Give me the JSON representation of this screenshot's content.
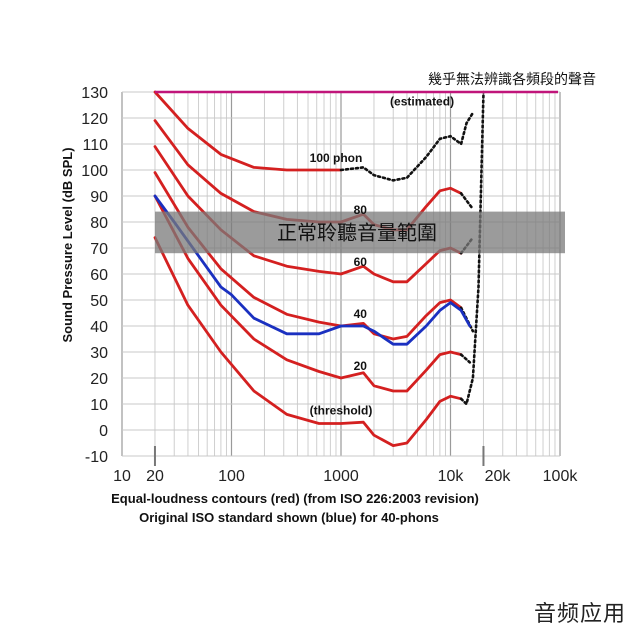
{
  "chart_data": {
    "type": "line",
    "title": "",
    "xlabel": "Equal-loudness contours (red) (from ISO 226:2003 revision)",
    "xlabel2": "Original ISO standard shown (blue) for 40-phons",
    "ylabel": "Sound Pressure Level (dB SPL)",
    "xscale": "log",
    "xlim": [
      10,
      100000
    ],
    "ylim": [
      -10,
      130
    ],
    "grid": true,
    "x_ticks": [
      {
        "value": 10,
        "label": "10"
      },
      {
        "value": 20,
        "label": "20"
      },
      {
        "value": 100,
        "label": "100"
      },
      {
        "value": 1000,
        "label": "1000"
      },
      {
        "value": 10000,
        "label": "10k"
      },
      {
        "value": 20000,
        "label": "20k"
      },
      {
        "value": 100000,
        "label": "100k"
      }
    ],
    "y_ticks": [
      130,
      120,
      110,
      100,
      90,
      80,
      70,
      60,
      50,
      40,
      30,
      20,
      10,
      0,
      -10
    ],
    "series": [
      {
        "label": "(threshold)",
        "color": "#d42020",
        "style": "solid",
        "points": [
          [
            20,
            74
          ],
          [
            40,
            48
          ],
          [
            80,
            30
          ],
          [
            160,
            15
          ],
          [
            320,
            6
          ],
          [
            630,
            2.5
          ],
          [
            1000,
            2.5
          ],
          [
            1600,
            3
          ],
          [
            2000,
            -2
          ],
          [
            3000,
            -6
          ],
          [
            4000,
            -5
          ],
          [
            6000,
            4
          ],
          [
            8000,
            11
          ],
          [
            10000,
            13
          ],
          [
            12500,
            12
          ]
        ],
        "dotted": [
          [
            12500,
            12
          ],
          [
            14000,
            10
          ],
          [
            16000,
            20
          ],
          [
            18000,
            55
          ],
          [
            20000,
            130
          ]
        ]
      },
      {
        "label": "20",
        "color": "#d42020",
        "style": "solid",
        "points": [
          [
            20,
            90
          ],
          [
            40,
            66
          ],
          [
            80,
            48
          ],
          [
            160,
            35
          ],
          [
            320,
            27
          ],
          [
            630,
            22.5
          ],
          [
            1000,
            20
          ],
          [
            1600,
            22
          ],
          [
            2000,
            17
          ],
          [
            3000,
            15
          ],
          [
            4000,
            15
          ],
          [
            6000,
            23
          ],
          [
            8000,
            29
          ],
          [
            10000,
            30
          ],
          [
            12500,
            29
          ]
        ],
        "dotted": [
          [
            12500,
            29
          ],
          [
            15000,
            26
          ]
        ]
      },
      {
        "label": "40",
        "color": "#d42020",
        "style": "solid",
        "points": [
          [
            20,
            99
          ],
          [
            40,
            78
          ],
          [
            80,
            62
          ],
          [
            160,
            51
          ],
          [
            320,
            44.5
          ],
          [
            630,
            41.5
          ],
          [
            1000,
            40
          ],
          [
            1600,
            41
          ],
          [
            2000,
            37
          ],
          [
            3000,
            35
          ],
          [
            4000,
            36
          ],
          [
            6000,
            44
          ],
          [
            8000,
            49
          ],
          [
            10000,
            50
          ],
          [
            12500,
            47
          ]
        ],
        "dotted": [
          [
            12500,
            47
          ],
          [
            16000,
            38
          ]
        ]
      },
      {
        "label": "60",
        "color": "#d42020",
        "style": "solid",
        "points": [
          [
            20,
            109
          ],
          [
            40,
            90
          ],
          [
            80,
            77
          ],
          [
            160,
            67
          ],
          [
            320,
            63
          ],
          [
            630,
            61
          ],
          [
            1000,
            60
          ],
          [
            1600,
            63
          ],
          [
            2000,
            60
          ],
          [
            3000,
            57
          ],
          [
            4000,
            57
          ],
          [
            6000,
            64
          ],
          [
            8000,
            69
          ],
          [
            10000,
            70
          ],
          [
            12500,
            68
          ]
        ],
        "dotted": [
          [
            12500,
            68
          ],
          [
            16000,
            74
          ]
        ]
      },
      {
        "label": "80",
        "color": "#d42020",
        "style": "solid",
        "points": [
          [
            20,
            119
          ],
          [
            40,
            102
          ],
          [
            80,
            91
          ],
          [
            160,
            84
          ],
          [
            320,
            81
          ],
          [
            630,
            80
          ],
          [
            1000,
            80
          ],
          [
            1600,
            83
          ],
          [
            2000,
            79
          ],
          [
            3000,
            77
          ],
          [
            4000,
            77
          ],
          [
            6000,
            86
          ],
          [
            8000,
            92
          ],
          [
            10000,
            93
          ],
          [
            12500,
            91
          ]
        ],
        "dotted": [
          [
            12500,
            91
          ],
          [
            16000,
            85
          ]
        ]
      },
      {
        "label": "100 phon",
        "color": "#d42020",
        "style": "solid",
        "points": [
          [
            20,
            130
          ],
          [
            40,
            116
          ],
          [
            80,
            106
          ],
          [
            160,
            101
          ],
          [
            320,
            100
          ],
          [
            630,
            100
          ],
          [
            1000,
            100
          ]
        ],
        "dotted": [
          [
            1000,
            100
          ],
          [
            1600,
            101
          ],
          [
            2000,
            98
          ],
          [
            3000,
            96
          ],
          [
            4000,
            97
          ],
          [
            6000,
            105
          ],
          [
            8000,
            112
          ],
          [
            10000,
            113
          ],
          [
            12500,
            110
          ],
          [
            14000,
            118
          ],
          [
            16000,
            122
          ]
        ]
      },
      {
        "label": "40 (original ISO)",
        "color": "#1a30c0",
        "style": "solid",
        "points": [
          [
            20,
            90
          ],
          [
            30,
            80
          ],
          [
            50,
            67
          ],
          [
            80,
            55
          ],
          [
            100,
            52
          ],
          [
            160,
            43
          ],
          [
            320,
            37
          ],
          [
            630,
            37
          ],
          [
            1000,
            40
          ],
          [
            1600,
            40
          ],
          [
            2000,
            38
          ],
          [
            3000,
            33
          ],
          [
            4000,
            33
          ],
          [
            6000,
            40
          ],
          [
            8000,
            46
          ],
          [
            10000,
            49
          ],
          [
            12500,
            46
          ],
          [
            15000,
            40
          ]
        ]
      }
    ],
    "hearing_limit": {
      "y": 130,
      "label": "幾乎無法辨識各頻段的聲音",
      "color": "#c0157a"
    },
    "estimated_label": "(estimated)",
    "normal_range": {
      "y_from": 68,
      "y_to": 84,
      "label": "正常聆聽音量範圍",
      "color": "#7a7a7a"
    }
  },
  "watermark": "音频应用"
}
